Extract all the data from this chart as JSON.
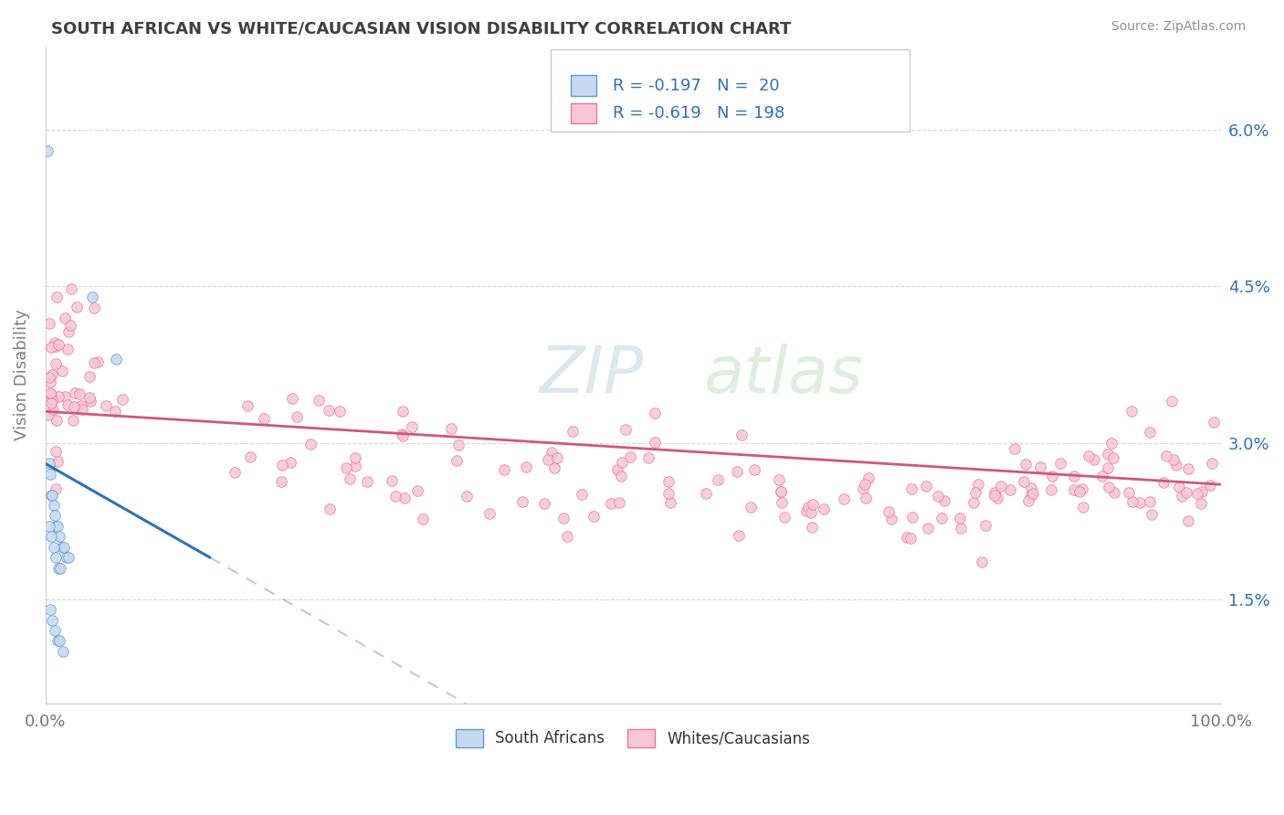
{
  "title": "SOUTH AFRICAN VS WHITE/CAUCASIAN VISION DISABILITY CORRELATION CHART",
  "source": "Source: ZipAtlas.com",
  "ylabel": "Vision Disability",
  "legend_sa": "South Africans",
  "legend_wc": "Whites/Caucasians",
  "r_sa": -0.197,
  "n_sa": 20,
  "r_wc": -0.619,
  "n_wc": 198,
  "xlim": [
    0.0,
    1.0
  ],
  "ylim": [
    0.005,
    0.068
  ],
  "ytick_vals": [
    0.015,
    0.03,
    0.045,
    0.06
  ],
  "ytick_labels": [
    "1.5%",
    "3.0%",
    "4.5%",
    "6.0%"
  ],
  "xtick_vals": [
    0.0,
    1.0
  ],
  "xtick_labels": [
    "0.0%",
    "100.0%"
  ],
  "color_sa_face": "#c6d9f0",
  "color_sa_edge": "#5b9bd5",
  "color_wc_face": "#f9c6d5",
  "color_wc_edge": "#e8789a",
  "line_color_sa": "#3070b8",
  "line_color_wc": "#d05878",
  "text_color_blue": "#3070b8",
  "grid_color": "#cccccc",
  "bg_color": "#ffffff",
  "title_color": "#404040",
  "source_color": "#909090",
  "axis_label_color": "#808080",
  "sa_line_start_x": 0.0,
  "sa_line_start_y": 0.028,
  "sa_line_solid_end_x": 0.14,
  "sa_line_solid_end_y": 0.019,
  "sa_line_dash_end_x": 0.52,
  "sa_line_dash_end_y": 0.005,
  "wc_line_start_x": 0.0,
  "wc_line_start_y": 0.033,
  "wc_line_end_x": 1.0,
  "wc_line_end_y": 0.026,
  "watermark_zip_color": "#e0e8f0",
  "watermark_atlas_color": "#dde8dd"
}
